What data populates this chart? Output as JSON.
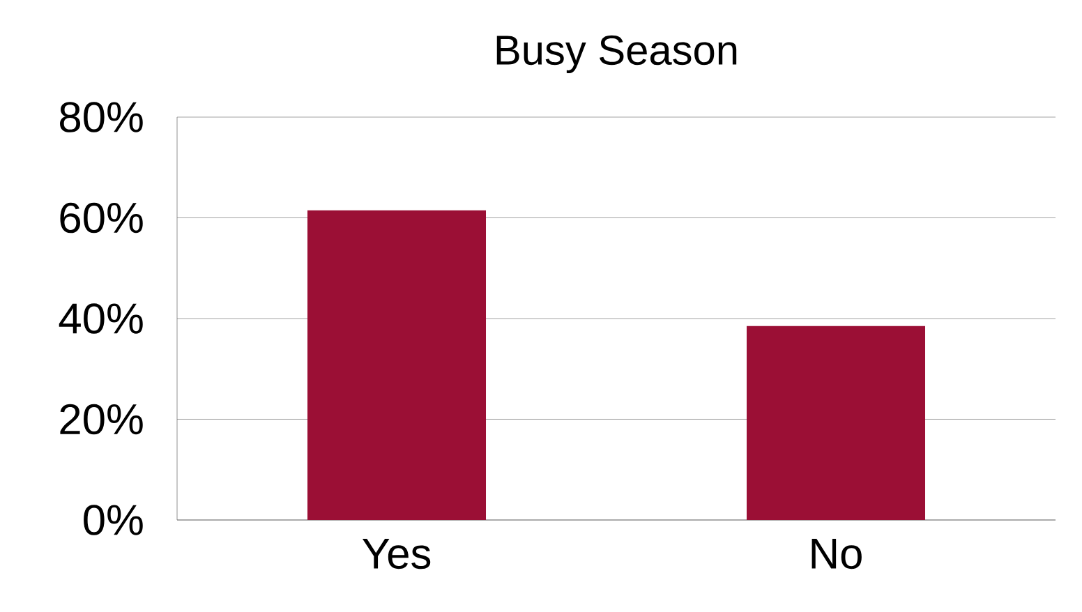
{
  "chart_data": {
    "type": "bar",
    "title": "Busy Season",
    "categories": [
      "Yes",
      "No"
    ],
    "values": [
      61.5,
      38.5
    ],
    "color": "#9b0f35",
    "ylim": [
      0,
      80
    ],
    "yticks": [
      {
        "value": 0,
        "label": "0%"
      },
      {
        "value": 20,
        "label": "20%"
      },
      {
        "value": 40,
        "label": "40%"
      },
      {
        "value": 60,
        "label": "60%"
      },
      {
        "value": 80,
        "label": "80%"
      }
    ],
    "grid": "y"
  }
}
